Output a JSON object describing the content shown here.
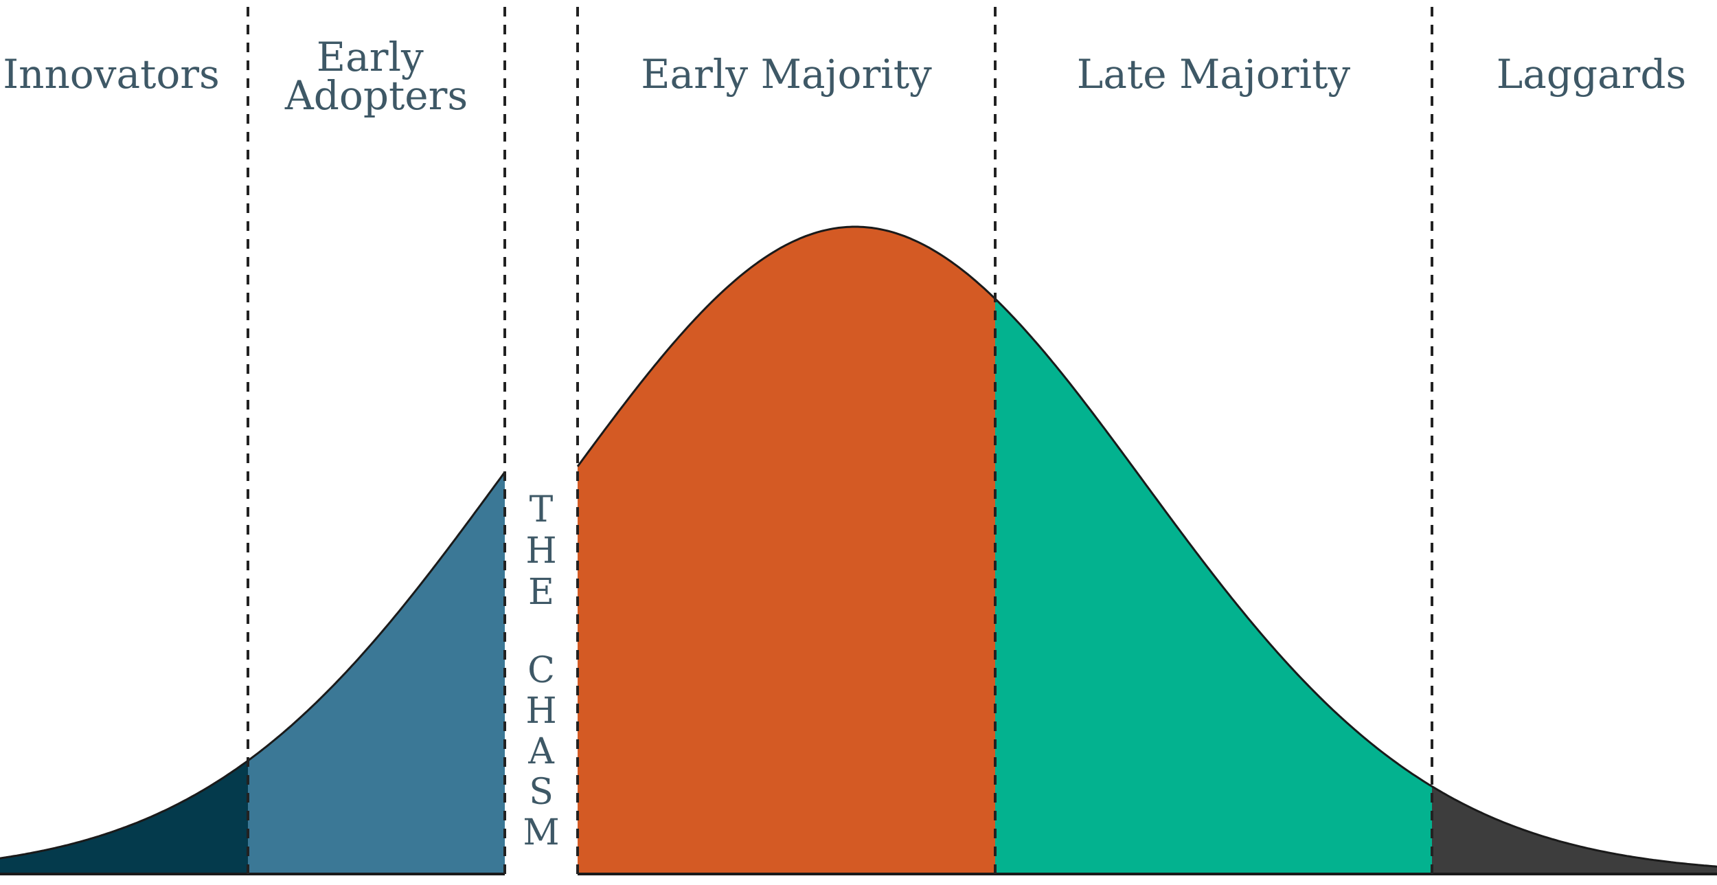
{
  "segments": [
    {
      "id": "innovators",
      "label_lines": [
        "Innovators"
      ],
      "color": "#043a4c"
    },
    {
      "id": "early-adopters",
      "label_lines": [
        "Early",
        "Adopters"
      ],
      "color": "#3b7896"
    },
    {
      "id": "early-majority",
      "label_lines": [
        "Early Majority"
      ],
      "color": "#d45a24"
    },
    {
      "id": "late-majority",
      "label_lines": [
        "Late Majority"
      ],
      "color": "#03b28f"
    },
    {
      "id": "laggards",
      "label_lines": [
        "Laggards"
      ],
      "color": "#3d3d3d"
    }
  ],
  "chasm": {
    "letters": [
      "T",
      "H",
      "E",
      "C",
      "H",
      "A",
      "S",
      "M"
    ]
  },
  "colors": {
    "label_text": "#3e5866",
    "outline": "#1a1a1a"
  }
}
